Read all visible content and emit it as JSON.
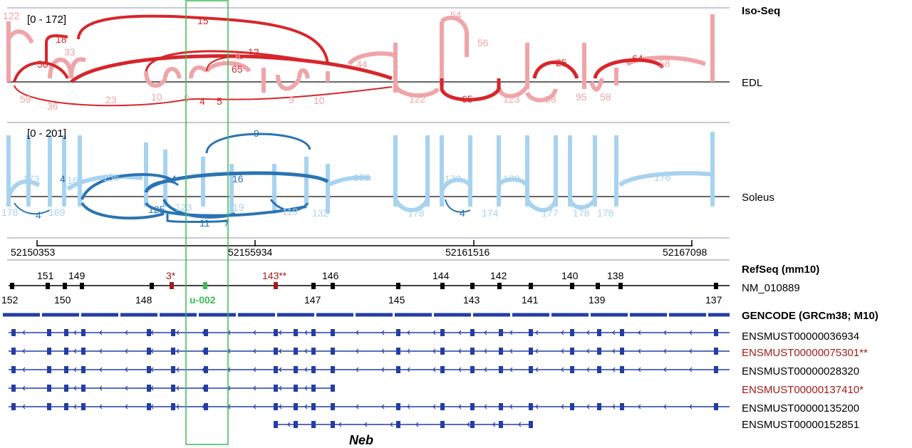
{
  "colors": {
    "edl_dark": "#d7262b",
    "edl_light": "#efa5a8",
    "soleus_dark": "#2a74b3",
    "soleus_light": "#a8d3ef",
    "gene_blue": "#233ea3",
    "red_text": "#a31b1b",
    "green_box": "#3dbb54",
    "axis_gray": "#c8c8d2"
  },
  "iso_seq": {
    "title": "Iso-Seq",
    "edl": {
      "range": "[0 - 172]",
      "label": "EDL",
      "junctions": [
        "122",
        "18",
        "15",
        "33",
        "56",
        "54",
        "56",
        "12",
        "8",
        "65",
        "44",
        "25",
        "64",
        "58",
        "59",
        "36",
        "23",
        "10",
        "9",
        "4",
        "5",
        "9",
        "10",
        "122",
        "65",
        "123",
        "98",
        "95",
        "58"
      ]
    },
    "soleus": {
      "range": "[0 - 201]",
      "label": "Soleus",
      "junctions": [
        "9",
        "173",
        "4",
        "166",
        "156",
        "4",
        "16",
        "169",
        "173",
        "178",
        "176",
        "178",
        "4",
        "169",
        "125",
        "123",
        "119",
        "119",
        "132",
        "11",
        "7",
        "178",
        "4",
        "174",
        "177",
        "178",
        "178"
      ]
    }
  },
  "coordinates": [
    "52150353",
    "52155934",
    "52161516",
    "52167098"
  ],
  "refseq": {
    "title": "RefSeq (mm10)",
    "transcript": "NM_010889",
    "exons_top": [
      "151",
      "149",
      "3*",
      "143**",
      "146",
      "144",
      "142",
      "140",
      "138"
    ],
    "exons_bottom": [
      "152",
      "150",
      "148",
      "u-002",
      "147",
      "145",
      "143",
      "141",
      "139",
      "137"
    ]
  },
  "gencode": {
    "title": "GENCODE (GRCm38; M10)",
    "transcripts": [
      {
        "id": "ENSMUST00000036934",
        "highlight": false
      },
      {
        "id": "ENSMUST00000075301**",
        "highlight": true
      },
      {
        "id": "ENSMUST00000028320",
        "highlight": false
      },
      {
        "id": "ENSMUST00000137410*",
        "highlight": true
      },
      {
        "id": "ENSMUST00000135200",
        "highlight": false
      },
      {
        "id": "ENSMUST00000152851",
        "highlight": false
      }
    ]
  },
  "gene_name": "Neb"
}
